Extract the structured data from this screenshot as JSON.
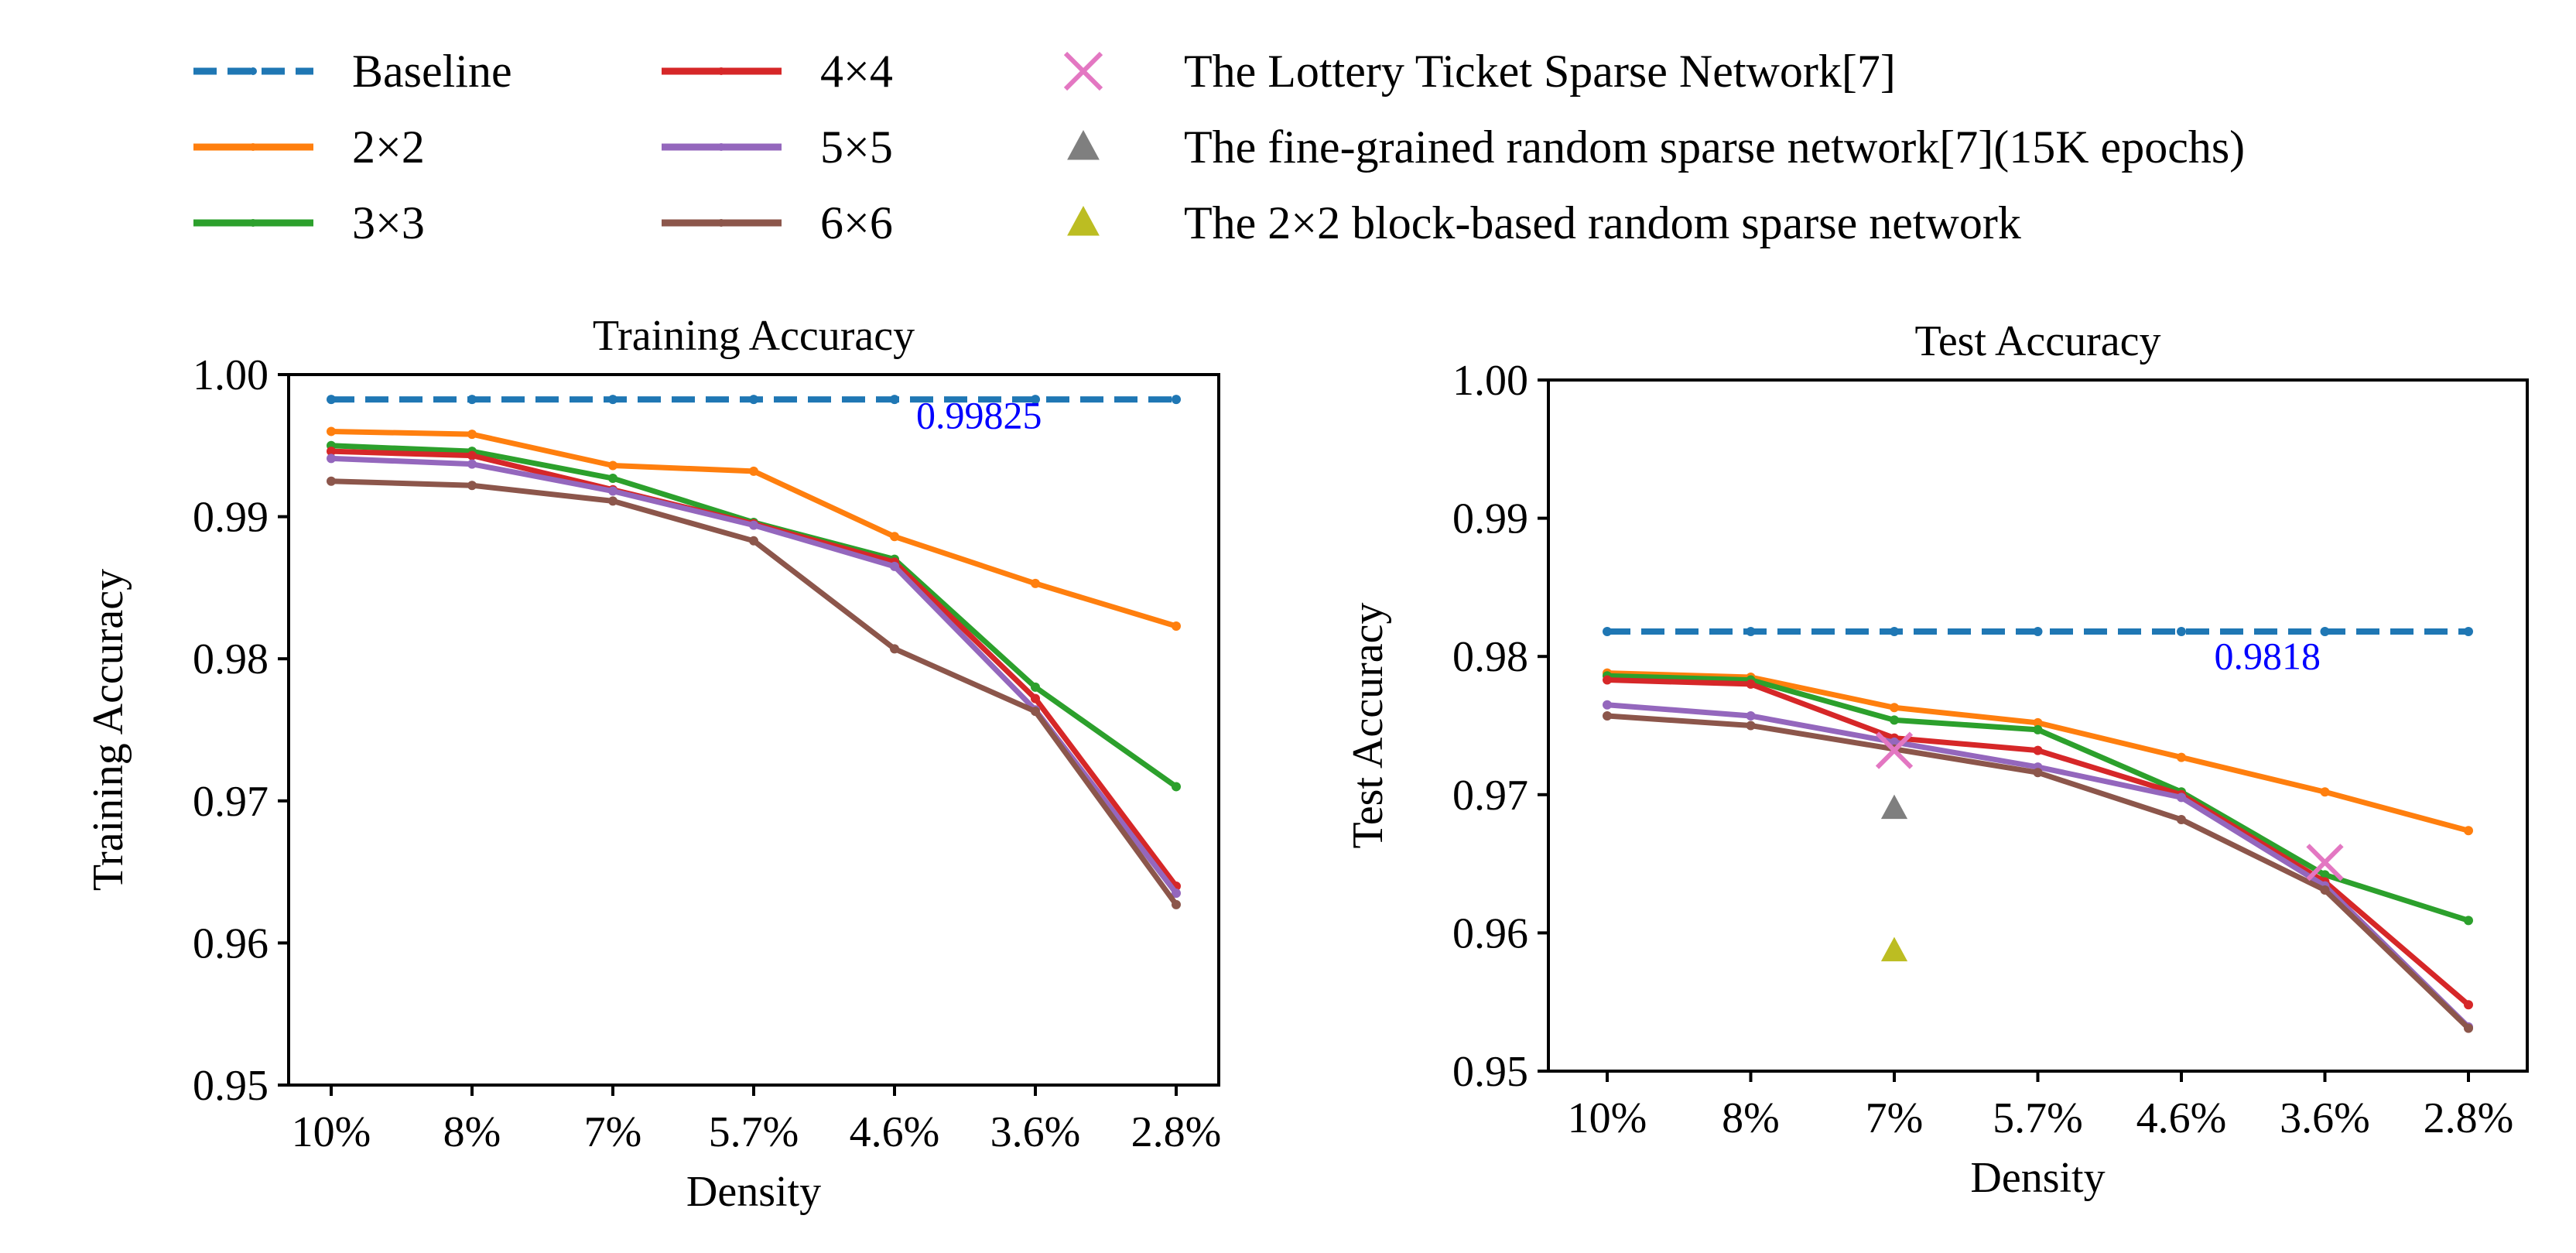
{
  "legend": {
    "items": [
      {
        "label": "Baseline",
        "kind": "line",
        "color": "#1f77b4",
        "dashed": true
      },
      {
        "label": "2×2",
        "kind": "line",
        "color": "#ff7f0e"
      },
      {
        "label": "3×3",
        "kind": "line",
        "color": "#2ca02c"
      },
      {
        "label": "4×4",
        "kind": "line",
        "color": "#d62728"
      },
      {
        "label": "5×5",
        "kind": "line",
        "color": "#9467bd"
      },
      {
        "label": "6×6",
        "kind": "line",
        "color": "#8c564b"
      },
      {
        "label": "The Lottery Ticket Sparse Network[7]",
        "kind": "cross",
        "color": "#e377c2"
      },
      {
        "label": "The fine-grained random sparse network[7](15K epochs)",
        "kind": "triangle",
        "color": "#7f7f7f"
      },
      {
        "label": "The 2×2 block-based random sparse network",
        "kind": "triangle",
        "color": "#bcbd22"
      }
    ]
  },
  "chart_data": [
    {
      "type": "line",
      "title": "Training Accuracy",
      "xlabel": "Density",
      "ylabel": "Training Accuracy",
      "categories": [
        "10%",
        "8%",
        "7%",
        "5.7%",
        "4.6%",
        "3.6%",
        "2.8%"
      ],
      "ylim": [
        0.95,
        1.0
      ],
      "yticks": [
        "0.95",
        "0.96",
        "0.97",
        "0.98",
        "0.99",
        "1.00"
      ],
      "series": [
        {
          "name": "Baseline",
          "color": "#1f77b4",
          "dashed": true,
          "values": [
            0.99825,
            0.99825,
            0.99825,
            0.99825,
            0.99825,
            0.99825,
            0.99825
          ]
        },
        {
          "name": "2×2",
          "color": "#ff7f0e",
          "values": [
            0.996,
            0.9958,
            0.9936,
            0.9932,
            0.9886,
            0.9853,
            0.9823
          ]
        },
        {
          "name": "3×3",
          "color": "#2ca02c",
          "values": [
            0.995,
            0.9946,
            0.9927,
            0.9896,
            0.987,
            0.978,
            0.971
          ]
        },
        {
          "name": "4×4",
          "color": "#d62728",
          "values": [
            0.9946,
            0.9943,
            0.9919,
            0.9895,
            0.9868,
            0.9772,
            0.964
          ]
        },
        {
          "name": "5×5",
          "color": "#9467bd",
          "values": [
            0.9941,
            0.9937,
            0.9918,
            0.9894,
            0.9865,
            0.9764,
            0.9635
          ]
        },
        {
          "name": "6×6",
          "color": "#8c564b",
          "values": [
            0.9925,
            0.9922,
            0.9911,
            0.9883,
            0.9807,
            0.9763,
            0.9627
          ]
        }
      ],
      "markers": [],
      "annotations": [
        {
          "text": "0.99825",
          "x_index": 4.6,
          "y": 0.9972,
          "color": "#0000ff"
        }
      ]
    },
    {
      "type": "line",
      "title": "Test Accuracy",
      "xlabel": "Density",
      "ylabel": "Test Accuracy",
      "categories": [
        "10%",
        "8%",
        "7%",
        "5.7%",
        "4.6%",
        "3.6%",
        "2.8%"
      ],
      "ylim": [
        0.95,
        1.0
      ],
      "yticks": [
        "0.95",
        "0.96",
        "0.97",
        "0.98",
        "0.99",
        "1.00"
      ],
      "series": [
        {
          "name": "Baseline",
          "color": "#1f77b4",
          "dashed": true,
          "values": [
            0.9818,
            0.9818,
            0.9818,
            0.9818,
            0.9818,
            0.9818,
            0.9818
          ]
        },
        {
          "name": "2×2",
          "color": "#ff7f0e",
          "values": [
            0.9788,
            0.9785,
            0.9763,
            0.9752,
            0.9727,
            0.9702,
            0.9674
          ]
        },
        {
          "name": "3×3",
          "color": "#2ca02c",
          "values": [
            0.9786,
            0.9783,
            0.9754,
            0.9747,
            0.9702,
            0.9642,
            0.9609
          ]
        },
        {
          "name": "4×4",
          "color": "#d62728",
          "values": [
            0.9783,
            0.978,
            0.9741,
            0.9732,
            0.97,
            0.9637,
            0.9548
          ]
        },
        {
          "name": "5×5",
          "color": "#9467bd",
          "values": [
            0.9765,
            0.9757,
            0.9738,
            0.972,
            0.9698,
            0.9634,
            0.9532
          ]
        },
        {
          "name": "6×6",
          "color": "#8c564b",
          "values": [
            0.9757,
            0.975,
            0.9733,
            0.9716,
            0.9682,
            0.9631,
            0.9531
          ]
        }
      ],
      "markers": [
        {
          "name": "The Lottery Ticket Sparse Network[7]",
          "shape": "cross",
          "color": "#e377c2",
          "points": [
            {
              "x_index": 2,
              "y": 0.9732
            },
            {
              "x_index": 5,
              "y": 0.9651
            }
          ]
        },
        {
          "name": "The fine-grained random sparse network[7](15K epochs)",
          "shape": "triangle",
          "color": "#7f7f7f",
          "points": [
            {
              "x_index": 2,
              "y": 0.969
            }
          ]
        },
        {
          "name": "The 2×2 block-based random sparse network",
          "shape": "triangle",
          "color": "#bcbd22",
          "points": [
            {
              "x_index": 2,
              "y": 0.9587
            }
          ]
        }
      ],
      "annotations": [
        {
          "text": "0.9818",
          "x_index": 4.6,
          "y": 0.9801,
          "color": "#0000ff"
        }
      ]
    }
  ]
}
